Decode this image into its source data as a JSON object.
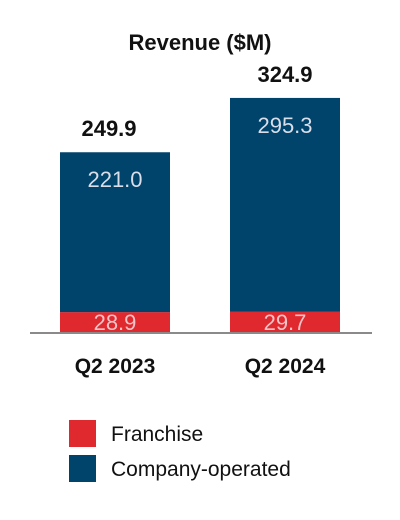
{
  "chart_data": {
    "type": "bar",
    "stacked": true,
    "title": "Revenue ($M)",
    "categories": [
      "Q2 2023",
      "Q2 2024"
    ],
    "series": [
      {
        "name": "Franchise",
        "values": [
          28.9,
          29.7
        ],
        "color": "#e0282f",
        "label_color": "#f3c3c6"
      },
      {
        "name": "Company-operated",
        "values": [
          221.0,
          295.3
        ],
        "color": "#00436b",
        "label_color": "#d9dee8"
      }
    ],
    "totals": [
      "249.9",
      "324.9"
    ],
    "value_labels": [
      [
        "28.9",
        "221.0"
      ],
      [
        "29.7",
        "295.3"
      ]
    ],
    "legend_position": "bottom",
    "grid": false,
    "ylim": [
      0,
      324.9
    ],
    "axis_color": "#8a8a8a"
  }
}
